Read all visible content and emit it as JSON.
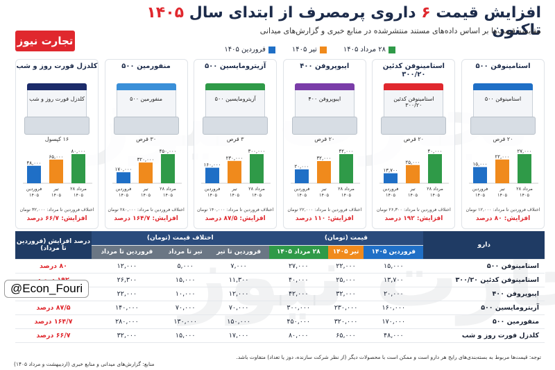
{
  "header": {
    "title_pre": "افزایش قیمت",
    "title_num": "۶",
    "title_mid": "داروی پرمصرف از ابتدای سال",
    "title_year": "۱۴۰۵",
    "title_post": "تاکنون",
    "subtitle": "مقایسه قیمت‌ها بر اساس داده‌های مستند منتشرشده در منابع خبری و گزارش‌های میدانی",
    "logo": "تجارت نیوز",
    "watermark": "تجارت نیوز"
  },
  "legend": [
    {
      "label": "فروردین ۱۴۰۵",
      "color": "#1f6fc6"
    },
    {
      "label": "تیر ۱۴۰۵",
      "color": "#f08a1c"
    },
    {
      "label": "۲۸ مرداد ۱۴۰۵",
      "color": "#2f9a48"
    }
  ],
  "chart_data": {
    "type": "bar",
    "x_labels": [
      "فروردین ۱۴۰۵",
      "تیر ۱۴۰۵",
      "۲۸ مرداد ۱۴۰۵"
    ],
    "series_colors": [
      "#1f6fc6",
      "#f08a1c",
      "#2f9a48"
    ],
    "panels": [
      {
        "name": "استامینوفن ۵۰۰",
        "count": "۲۰ قرص",
        "values": [
          15000,
          22000,
          27000
        ],
        "value_labels": [
          "۱۵,۰۰۰",
          "۲۲,۰۰۰",
          "۲۷,۰۰۰"
        ],
        "note": "اختلاف فروردین تا مرداد: ۱۲,۰۰۰ تومان",
        "increase": "افزایش: ۸۰ درصد",
        "accent": "#1f6fc6"
      },
      {
        "name": "استامینوفن کدئین ۳۰۰/۲۰",
        "count": "۲۰ قرص",
        "values": [
          13700,
          25000,
          40000
        ],
        "value_labels": [
          "۱۳,۷۰۰",
          "۲۵,۰۰۰",
          "۴۰,۰۰۰"
        ],
        "note": "اختلاف فروردین تا مرداد: ۲۶,۳۰۰ تومان",
        "increase": "افزایش: ۱۹۲ درصد",
        "accent": "#e0282e"
      },
      {
        "name": "ایبوپروفن ۴۰۰",
        "count": "۲۰ قرص",
        "values": [
          20000,
          32000,
          42000
        ],
        "value_labels": [
          "۲۰,۰۰۰",
          "۳۲,۰۰۰",
          "۴۲,۰۰۰"
        ],
        "note": "اختلاف فروردین تا مرداد: ۲۲,۰۰۰ تومان",
        "increase": "افزایش: ۱۱۰ درصد",
        "accent": "#7a3da8"
      },
      {
        "name": "آزیترومایسین ۵۰۰",
        "count": "۳ قرص",
        "values": [
          160000,
          230000,
          300000
        ],
        "value_labels": [
          "۱۶۰,۰۰۰",
          "۲۳۰,۰۰۰",
          "۳۰۰,۰۰۰"
        ],
        "note": "اختلاف فروردین تا مرداد: ۱۴۰,۰۰۰ تومان",
        "increase": "افزایش: ۸۷/۵ درصد",
        "accent": "#2f9a48"
      },
      {
        "name": "منفورمین ۵۰۰",
        "count": "۳۰ قرص",
        "values": [
          170000,
          320000,
          450000
        ],
        "value_labels": [
          "۱۷۰,۰۰۰",
          "۳۲۰,۰۰۰",
          "۴۵۰,۰۰۰"
        ],
        "note": "اختلاف فروردین تا مرداد: ۲۸۰,۰۰۰ تومان",
        "increase": "افزایش: ۱۶۴/۷ درصد",
        "accent": "#3a8fd8"
      },
      {
        "name": "کلدزل فورت روز و شب",
        "count": "۱۶ کپسول",
        "values": [
          48000,
          65000,
          80000
        ],
        "value_labels": [
          "۴۸,۰۰۰",
          "۶۵,۰۰۰",
          "۸۰,۰۰۰"
        ],
        "note": "اختلاف فروردین تا مرداد: ۳۲,۰۰۰ تومان",
        "increase": "افزایش: ۶۶/۷ درصد",
        "accent": "#1c2b6a"
      }
    ]
  },
  "table": {
    "h_drug": "دارو",
    "h_price": "قیمت (تومان)",
    "h_diff": "اختلاف قیمت (تومان)",
    "h_inc": "درصد افزایش (فروردین تا مرداد)",
    "sub_price": [
      "فروردین ۱۴۰۵",
      "تیر ۱۴۰۵",
      "۲۸ مرداد ۱۴۰۵"
    ],
    "sub_diff": [
      "فروردین تا تیر",
      "تیر تا مرداد",
      "فروردین تا مرداد"
    ],
    "rows": [
      [
        "استامینوفن ۵۰۰",
        "۱۵,۰۰۰",
        "۲۲,۰۰۰",
        "۲۷,۰۰۰",
        "۷,۰۰۰",
        "۵,۰۰۰",
        "۱۲,۰۰۰",
        "۸۰ درصد"
      ],
      [
        "استامینوفن کدئین ۳۰۰/۲۰",
        "۱۳,۷۰۰",
        "۲۵,۰۰۰",
        "۴۰,۰۰۰",
        "۱۱,۳۰۰",
        "۱۵,۰۰۰",
        "۲۶,۳۰۰",
        "۱۹۲ درصد"
      ],
      [
        "ایبوپروفن ۴۰۰",
        "۲۰,۰۰۰",
        "۳۲,۰۰۰",
        "۴۲,۰۰۰",
        "۱۲,۰۰۰",
        "۱۰,۰۰۰",
        "۲۲,۰۰۰",
        "۱۱۰ درصد"
      ],
      [
        "آزیترومایسین ۵۰۰",
        "۱۶۰,۰۰۰",
        "۲۳۰,۰۰۰",
        "۳۰۰,۰۰۰",
        "۷۰,۰۰۰",
        "۷۰,۰۰۰",
        "۱۴۰,۰۰۰",
        "۸۷/۵ درصد"
      ],
      [
        "منفورمین ۵۰۰",
        "۱۷۰,۰۰۰",
        "۳۲۰,۰۰۰",
        "۴۵۰,۰۰۰",
        "۱۵۰,۰۰۰",
        "۱۳۰,۰۰۰",
        "۲۸۰,۰۰۰",
        "۱۶۴/۷ درصد"
      ],
      [
        "کلدزل فورت روز و شب",
        "۴۸,۰۰۰",
        "۶۵,۰۰۰",
        "۸۰,۰۰۰",
        "۱۷,۰۰۰",
        "۱۵,۰۰۰",
        "۳۲,۰۰۰",
        "۶۶/۷ درصد"
      ]
    ]
  },
  "badge": "@Econ_Fouri",
  "footnote": "توجه: قیمت‌ها مربوط به بسته‌بندی‌های رایج هر دارو است و ممکن است با محصولات دیگر (از نظر شرکت سازنده، دوز یا تعداد) متفاوت باشد.",
  "source": "منابع: گزارش‌های میدانی و منابع خبری (اردیبهشت و مرداد ۱۴۰۵)"
}
